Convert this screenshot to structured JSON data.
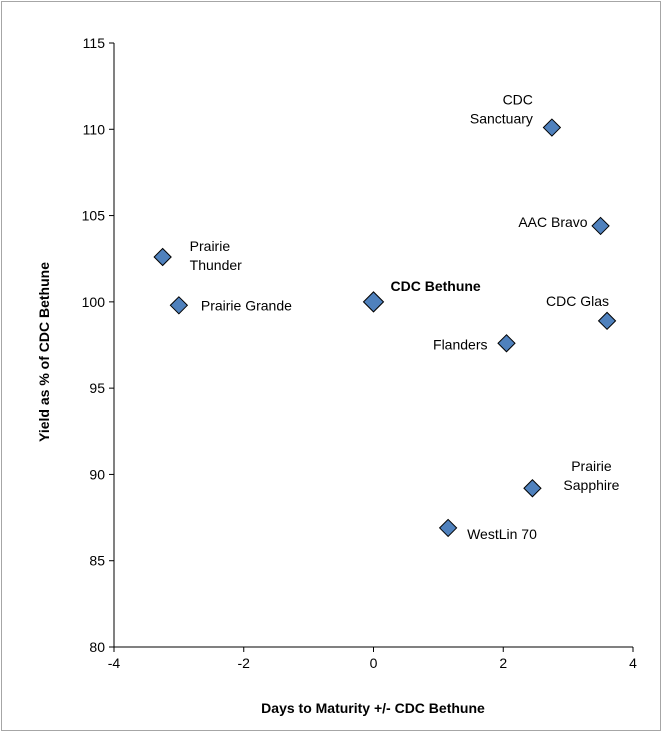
{
  "chart_data": {
    "type": "scatter",
    "title": "",
    "xlabel": "Days to Maturity +/- CDC Bethune",
    "ylabel": "Yield as % of CDC Bethune",
    "xlim": [
      -4,
      4
    ],
    "ylim": [
      80,
      115
    ],
    "xticks": [
      -4,
      -2,
      0,
      2,
      4
    ],
    "yticks": [
      80,
      85,
      90,
      95,
      100,
      105,
      110,
      115
    ],
    "grid": false,
    "legend": "none",
    "marker": "diamond",
    "marker_color": "#4f81bd",
    "points": [
      {
        "label": [
          "Prairie",
          "Thunder"
        ],
        "x": -3.25,
        "y": 102.6,
        "bold": false
      },
      {
        "label": [
          "Prairie Grande"
        ],
        "x": -3.0,
        "y": 99.8,
        "bold": false
      },
      {
        "label": [
          "CDC Bethune"
        ],
        "x": 0.0,
        "y": 100.0,
        "bold": true
      },
      {
        "label": [
          "CDC",
          "Sanctuary"
        ],
        "x": 2.75,
        "y": 110.1,
        "bold": false
      },
      {
        "label": [
          "AAC Bravo"
        ],
        "x": 3.5,
        "y": 104.4,
        "bold": false
      },
      {
        "label": [
          "CDC Glas"
        ],
        "x": 3.6,
        "y": 98.9,
        "bold": false
      },
      {
        "label": [
          "Flanders"
        ],
        "x": 2.05,
        "y": 97.6,
        "bold": false
      },
      {
        "label": [
          "Prairie",
          "Sapphire"
        ],
        "x": 2.45,
        "y": 89.2,
        "bold": false
      },
      {
        "label": [
          "WestLin 70"
        ],
        "x": 1.15,
        "y": 86.9,
        "bold": false
      }
    ]
  }
}
